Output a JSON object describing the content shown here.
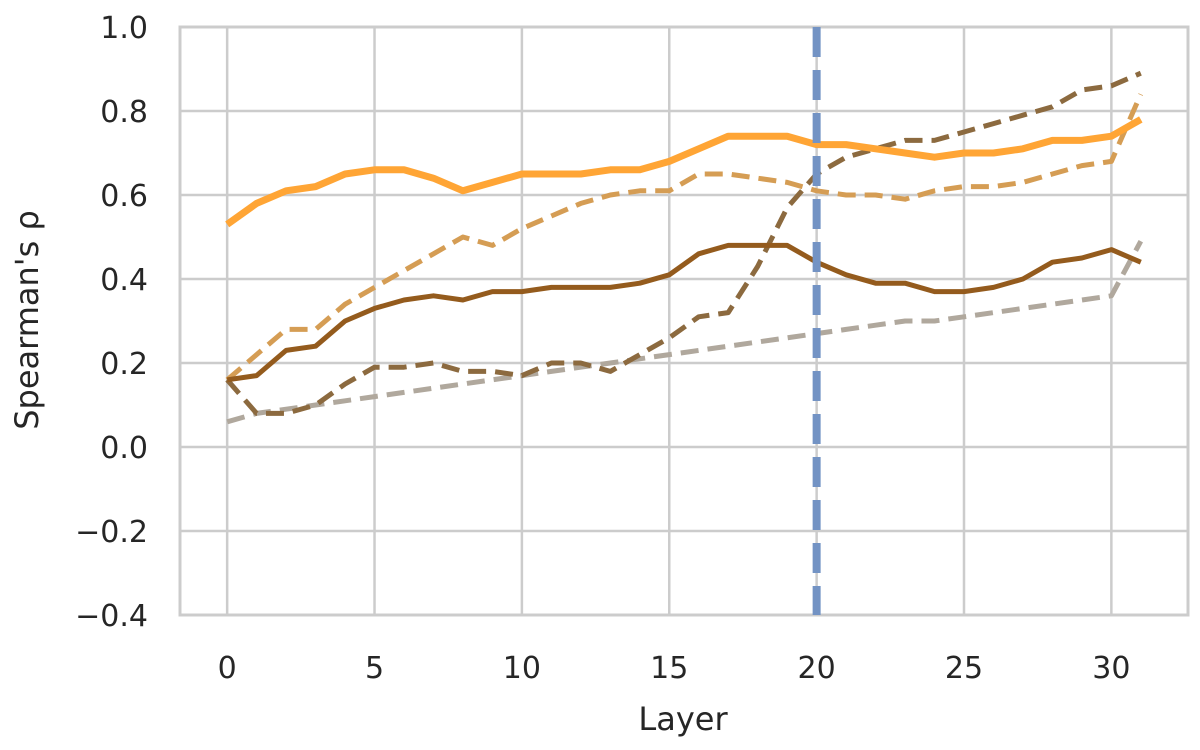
{
  "chart_data": {
    "type": "line",
    "title": "",
    "xlabel": "Layer",
    "ylabel": "Spearman's ρ",
    "xlim": [
      -1.6,
      32.6
    ],
    "ylim": [
      -0.4,
      1.0
    ],
    "xticks": [
      0,
      5,
      10,
      15,
      20,
      25,
      30
    ],
    "yticks": [
      1.0,
      0.8,
      0.6,
      0.4,
      0.2,
      0.0,
      -0.2,
      -0.4
    ],
    "ytick_labels": [
      "1.0",
      "0.8",
      "0.6",
      "0.4",
      "0.2",
      "0.0",
      "−0.2",
      "−0.4"
    ],
    "grid": true,
    "legend": "none",
    "vline": {
      "x": 20,
      "color": "#7393c4"
    },
    "x": [
      0,
      1,
      2,
      3,
      4,
      5,
      6,
      7,
      8,
      9,
      10,
      11,
      12,
      13,
      14,
      15,
      16,
      17,
      18,
      19,
      20,
      21,
      22,
      23,
      24,
      25,
      26,
      27,
      28,
      29,
      30,
      31
    ],
    "series": [
      {
        "color": "#b0a89d",
        "dashed": true,
        "values": [
          0.06,
          0.08,
          0.09,
          0.1,
          0.11,
          0.12,
          0.13,
          0.14,
          0.15,
          0.16,
          0.17,
          0.18,
          0.19,
          0.2,
          0.21,
          0.22,
          0.23,
          0.24,
          0.25,
          0.26,
          0.27,
          0.28,
          0.29,
          0.3,
          0.3,
          0.31,
          0.32,
          0.33,
          0.34,
          0.35,
          0.36,
          0.49
        ]
      },
      {
        "color": "#8c6a3f",
        "dashed": true,
        "values": [
          0.16,
          0.08,
          0.08,
          0.1,
          0.15,
          0.19,
          0.19,
          0.2,
          0.18,
          0.18,
          0.17,
          0.2,
          0.2,
          0.18,
          0.22,
          0.26,
          0.31,
          0.32,
          0.43,
          0.57,
          0.65,
          0.69,
          0.71,
          0.73,
          0.73,
          0.75,
          0.77,
          0.79,
          0.81,
          0.85,
          0.86,
          0.89
        ]
      },
      {
        "color": "#d59d54",
        "dashed": true,
        "values": [
          0.16,
          0.22,
          0.28,
          0.28,
          0.34,
          0.38,
          0.42,
          0.46,
          0.5,
          0.48,
          0.52,
          0.55,
          0.58,
          0.6,
          0.61,
          0.61,
          0.65,
          0.65,
          0.64,
          0.63,
          0.61,
          0.6,
          0.6,
          0.59,
          0.61,
          0.62,
          0.62,
          0.63,
          0.65,
          0.67,
          0.68,
          0.84
        ]
      },
      {
        "color": "#945b1d",
        "dashed": false,
        "values": [
          0.16,
          0.17,
          0.23,
          0.24,
          0.3,
          0.33,
          0.35,
          0.36,
          0.35,
          0.37,
          0.37,
          0.38,
          0.38,
          0.38,
          0.39,
          0.41,
          0.46,
          0.48,
          0.48,
          0.48,
          0.44,
          0.41,
          0.39,
          0.39,
          0.37,
          0.37,
          0.38,
          0.4,
          0.44,
          0.45,
          0.47,
          0.44
        ]
      },
      {
        "color": "#ffa535",
        "dashed": false,
        "thick": true,
        "values": [
          0.53,
          0.58,
          0.61,
          0.62,
          0.65,
          0.66,
          0.66,
          0.64,
          0.61,
          0.63,
          0.65,
          0.65,
          0.65,
          0.66,
          0.66,
          0.68,
          0.71,
          0.74,
          0.74,
          0.74,
          0.72,
          0.72,
          0.71,
          0.7,
          0.69,
          0.7,
          0.7,
          0.71,
          0.73,
          0.73,
          0.74,
          0.78
        ]
      }
    ]
  }
}
